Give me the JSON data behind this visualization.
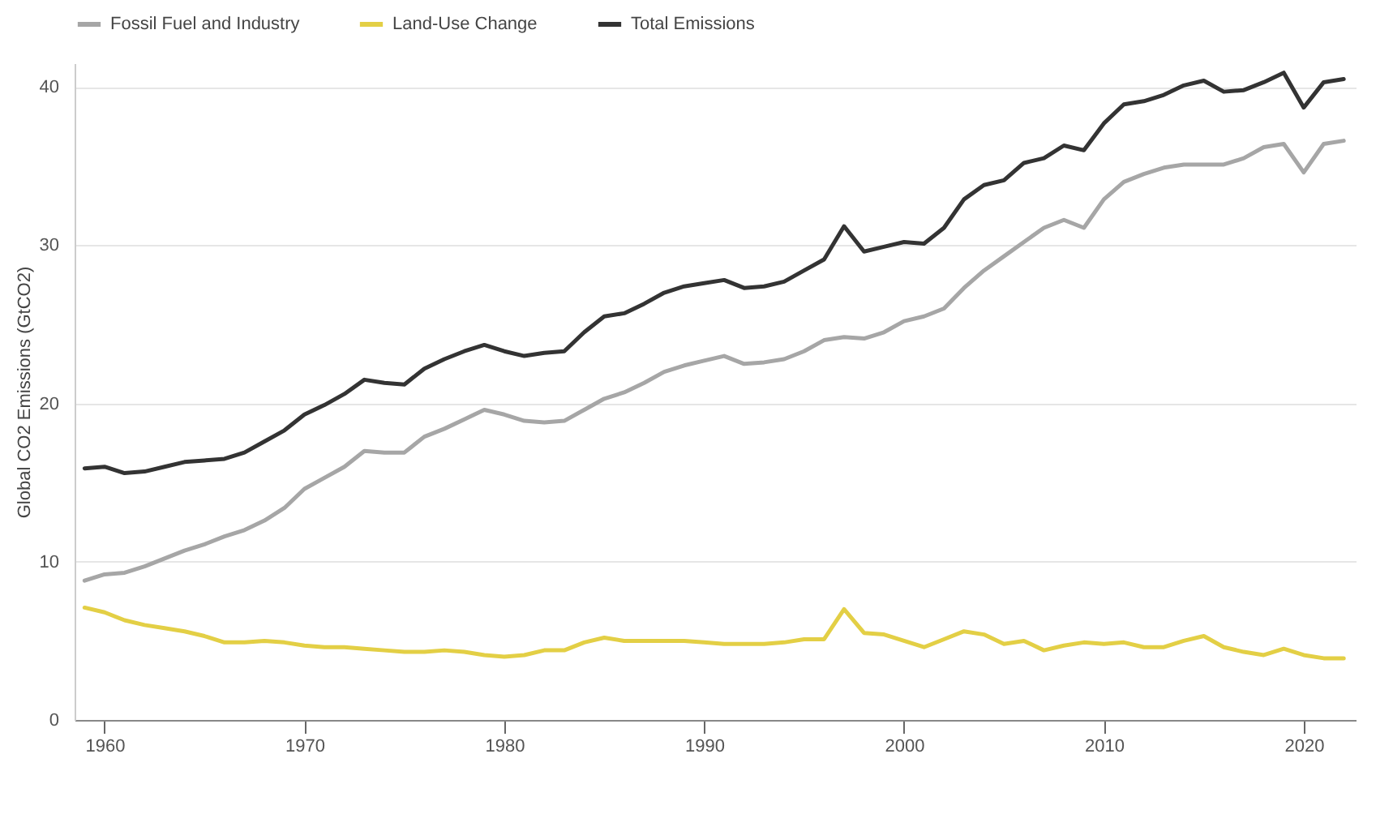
{
  "chart_data": {
    "type": "line",
    "ylabel": "Global CO2 Emissions (GtCO2)",
    "x": [
      1959,
      1960,
      1961,
      1962,
      1963,
      1964,
      1965,
      1966,
      1967,
      1968,
      1969,
      1970,
      1971,
      1972,
      1973,
      1974,
      1975,
      1976,
      1977,
      1978,
      1979,
      1980,
      1981,
      1982,
      1983,
      1984,
      1985,
      1986,
      1987,
      1988,
      1989,
      1990,
      1991,
      1992,
      1993,
      1994,
      1995,
      1996,
      1997,
      1998,
      1999,
      2000,
      2001,
      2002,
      2003,
      2004,
      2005,
      2006,
      2007,
      2008,
      2009,
      2010,
      2011,
      2012,
      2013,
      2014,
      2015,
      2016,
      2017,
      2018,
      2019,
      2020,
      2021,
      2022
    ],
    "series": [
      {
        "name": "Fossil Fuel and Industry",
        "color": "#a6a6a6",
        "values": [
          8.8,
          9.2,
          9.3,
          9.7,
          10.2,
          10.7,
          11.1,
          11.6,
          12.0,
          12.6,
          13.4,
          14.6,
          15.3,
          16.0,
          17.0,
          16.9,
          16.9,
          17.9,
          18.4,
          19.0,
          19.6,
          19.3,
          18.9,
          18.8,
          18.9,
          19.6,
          20.3,
          20.7,
          21.3,
          22.0,
          22.4,
          22.7,
          23.0,
          22.5,
          22.6,
          22.8,
          23.3,
          24.0,
          24.2,
          24.1,
          24.5,
          25.2,
          25.5,
          26.0,
          27.3,
          28.4,
          29.3,
          30.2,
          31.1,
          31.6,
          31.1,
          32.9,
          34.0,
          34.5,
          34.9,
          35.1,
          35.1,
          35.1,
          35.5,
          36.2,
          36.4,
          34.6,
          36.4,
          36.6
        ]
      },
      {
        "name": "Land-Use Change",
        "color": "#e3cf45",
        "values": [
          7.1,
          6.8,
          6.3,
          6.0,
          5.8,
          5.6,
          5.3,
          4.9,
          4.9,
          5.0,
          4.9,
          4.7,
          4.6,
          4.6,
          4.5,
          4.4,
          4.3,
          4.3,
          4.4,
          4.3,
          4.1,
          4.0,
          4.1,
          4.4,
          4.4,
          4.9,
          5.2,
          5.0,
          5.0,
          5.0,
          5.0,
          4.9,
          4.8,
          4.8,
          4.8,
          4.9,
          5.1,
          5.1,
          7.0,
          5.5,
          5.4,
          5.0,
          4.6,
          5.1,
          5.6,
          5.4,
          4.8,
          5.0,
          4.4,
          4.7,
          4.9,
          4.8,
          4.9,
          4.6,
          4.6,
          5.0,
          5.3,
          4.6,
          4.3,
          4.1,
          4.5,
          4.1,
          3.9,
          3.9
        ]
      },
      {
        "name": "Total Emissions",
        "color": "#333333",
        "values": [
          15.9,
          16.0,
          15.6,
          15.7,
          16.0,
          16.3,
          16.4,
          16.5,
          16.9,
          17.6,
          18.3,
          19.3,
          19.9,
          20.6,
          21.5,
          21.3,
          21.2,
          22.2,
          22.8,
          23.3,
          23.7,
          23.3,
          23.0,
          23.2,
          23.3,
          24.5,
          25.5,
          25.7,
          26.3,
          27.0,
          27.4,
          27.6,
          27.8,
          27.3,
          27.4,
          27.7,
          28.4,
          29.1,
          31.2,
          29.6,
          29.9,
          30.2,
          30.1,
          31.1,
          32.9,
          33.8,
          34.1,
          35.2,
          35.5,
          36.3,
          36.0,
          37.7,
          38.9,
          39.1,
          39.5,
          40.1,
          40.4,
          39.7,
          39.8,
          40.3,
          40.9,
          38.7,
          40.3,
          40.5
        ]
      }
    ],
    "xlim": [
      1958.5,
      2022.6
    ],
    "xticks": [
      1960,
      1970,
      1980,
      1990,
      2000,
      2010,
      2020
    ],
    "ylim": [
      0,
      41.5
    ],
    "yticks": [
      0,
      10,
      20,
      30,
      40
    ],
    "grid": "y",
    "legend": "top",
    "marker": "none",
    "line_style": "solid"
  }
}
